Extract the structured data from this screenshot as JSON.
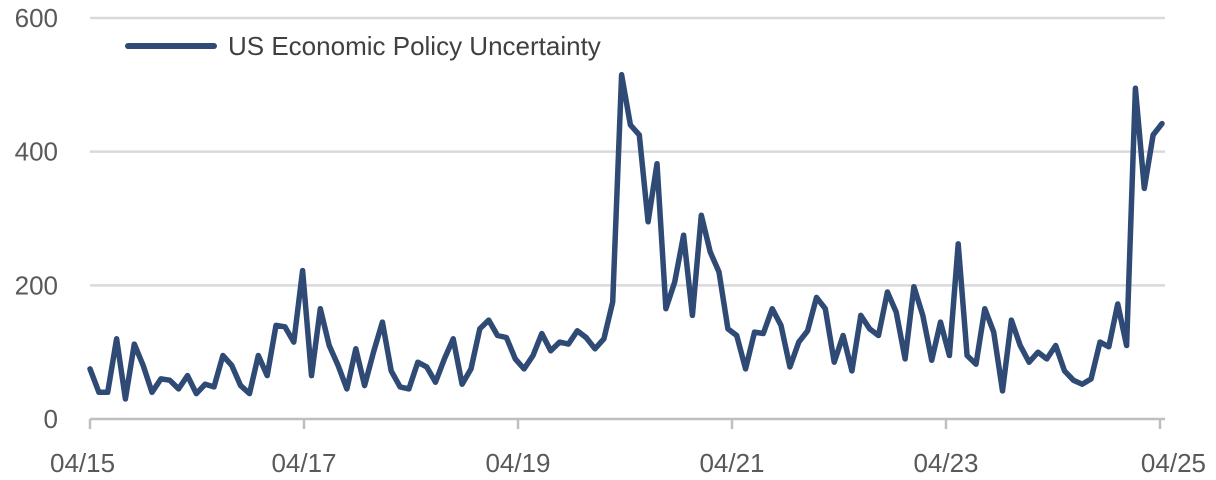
{
  "chart_data": {
    "type": "line",
    "title": "",
    "xlabel": "",
    "ylabel": "",
    "ylim": [
      0,
      600
    ],
    "yticks": [
      0,
      200,
      400,
      600
    ],
    "xticks": [
      "04/15",
      "04/17",
      "04/19",
      "04/21",
      "04/23",
      "04/25"
    ],
    "grid": true,
    "legend": "top-left",
    "x_start": "2015-04",
    "x_end": "2025-04",
    "series": [
      {
        "name": "US Economic Policy Uncertainty",
        "color": "#2f4a74",
        "values": [
          75,
          40,
          40,
          120,
          30,
          112,
          80,
          40,
          60,
          58,
          45,
          65,
          38,
          52,
          48,
          95,
          80,
          50,
          38,
          95,
          65,
          140,
          138,
          115,
          222,
          65,
          165,
          110,
          80,
          45,
          105,
          50,
          100,
          145,
          72,
          48,
          45,
          85,
          78,
          55,
          90,
          120,
          52,
          75,
          135,
          148,
          125,
          122,
          90,
          75,
          95,
          128,
          102,
          115,
          112,
          132,
          122,
          105,
          120,
          175,
          515,
          440,
          425,
          295,
          382,
          165,
          205,
          275,
          155,
          305,
          250,
          220,
          135,
          125,
          75,
          130,
          128,
          165,
          140,
          78,
          115,
          132,
          182,
          165,
          85,
          125,
          72,
          155,
          135,
          125,
          190,
          160,
          90,
          198,
          155,
          88,
          145,
          95,
          262,
          95,
          82,
          165,
          130,
          42,
          148,
          110,
          85,
          100,
          90,
          110,
          72,
          58,
          52,
          60,
          115,
          108,
          172,
          110,
          495,
          345,
          425,
          442
        ]
      }
    ]
  }
}
